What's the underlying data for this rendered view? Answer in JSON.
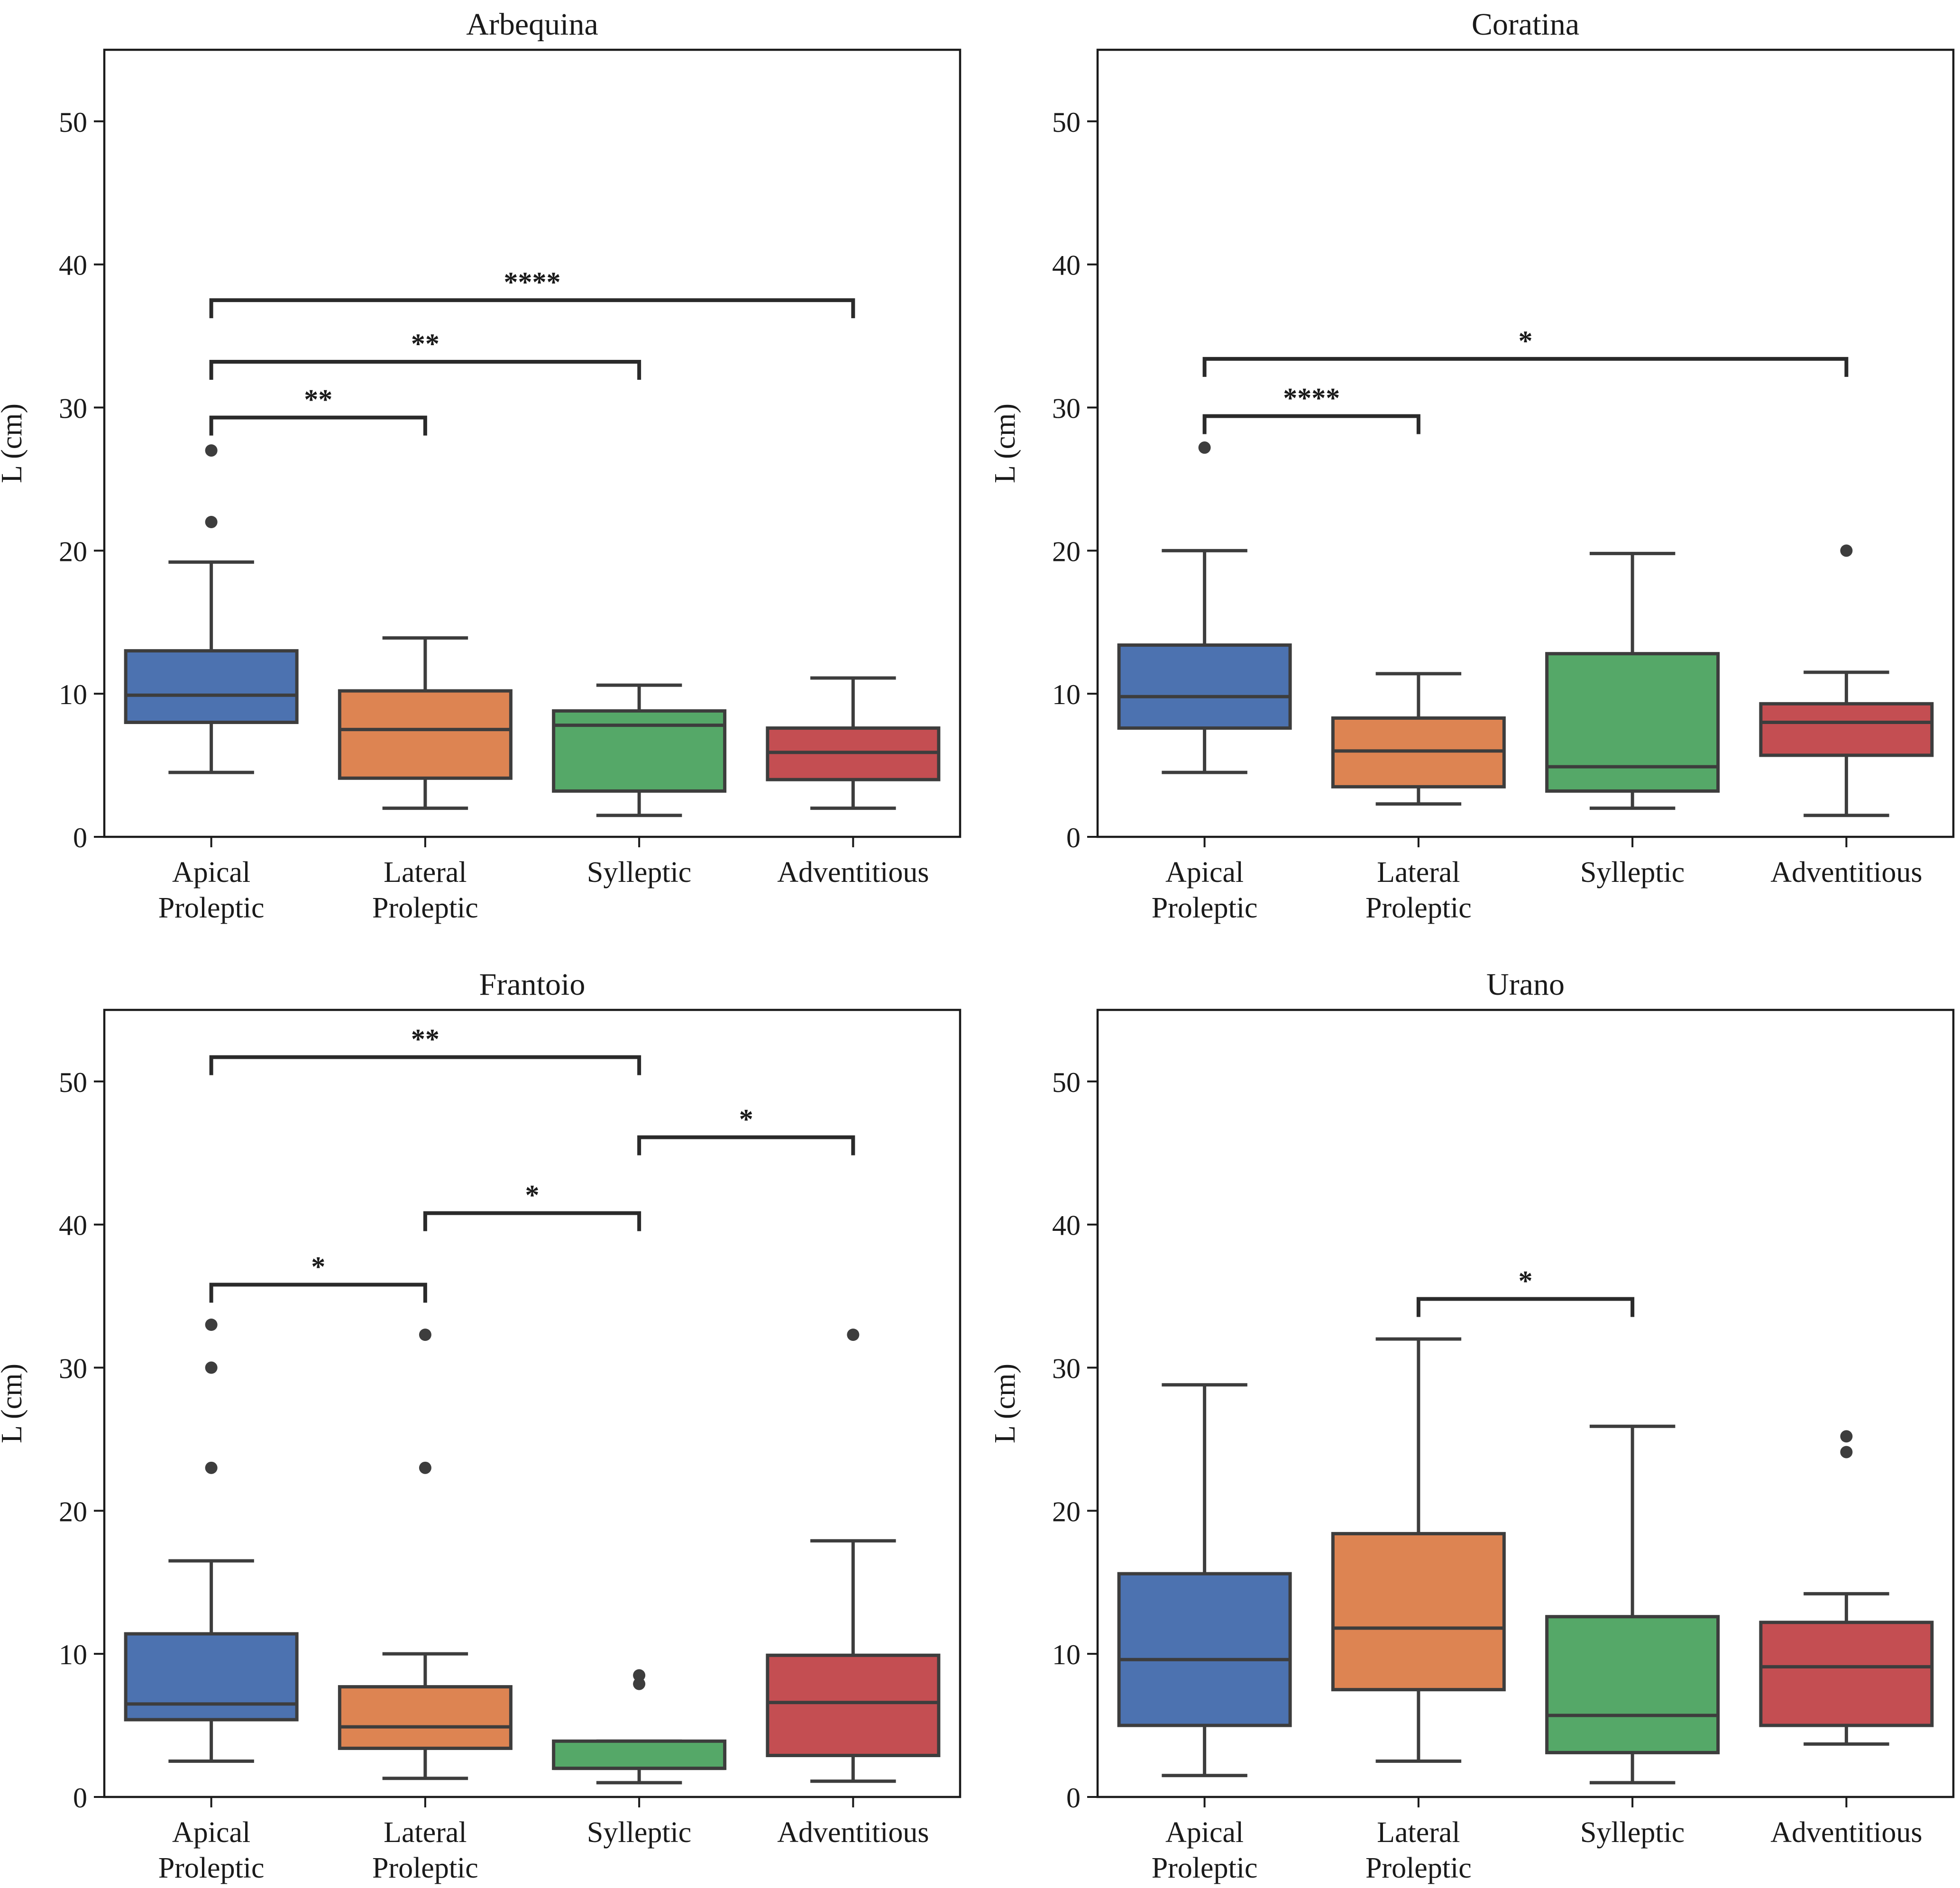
{
  "figure": {
    "ylabel": "L (cm)",
    "category_lines": [
      [
        "Apical",
        "Proleptic"
      ],
      [
        "Lateral",
        "Proleptic"
      ],
      [
        "Sylleptic"
      ],
      [
        "Adventitious"
      ]
    ]
  },
  "chart_data": [
    {
      "type": "box",
      "title": "Arbequina",
      "ylabel": "L (cm)",
      "ylim": [
        0,
        55
      ],
      "yticks": [
        0,
        10,
        20,
        30,
        40,
        50
      ],
      "categories": [
        "Apical Proleptic",
        "Lateral Proleptic",
        "Sylleptic",
        "Adventitious"
      ],
      "colors": [
        "#4c72b0",
        "#dd8452",
        "#55a868",
        "#c44e52"
      ],
      "boxes": [
        {
          "whislo": 4.5,
          "q1": 8.0,
          "med": 9.9,
          "q3": 13.0,
          "whishi": 19.2,
          "fliers": [
            22.0,
            27.0
          ]
        },
        {
          "whislo": 2.0,
          "q1": 4.1,
          "med": 7.5,
          "q3": 10.2,
          "whishi": 13.9,
          "fliers": []
        },
        {
          "whislo": 1.5,
          "q1": 3.2,
          "med": 7.8,
          "q3": 8.8,
          "whishi": 10.6,
          "fliers": []
        },
        {
          "whislo": 2.0,
          "q1": 4.0,
          "med": 5.9,
          "q3": 7.6,
          "whishi": 11.1,
          "fliers": []
        }
      ],
      "annotations": [
        {
          "from": 0,
          "to": 1,
          "y": 29.3,
          "label": "**"
        },
        {
          "from": 0,
          "to": 2,
          "y": 33.2,
          "label": "**"
        },
        {
          "from": 0,
          "to": 3,
          "y": 37.5,
          "label": "****"
        }
      ]
    },
    {
      "type": "box",
      "title": "Coratina",
      "ylabel": "L (cm)",
      "ylim": [
        0,
        55
      ],
      "yticks": [
        0,
        10,
        20,
        30,
        40,
        50
      ],
      "categories": [
        "Apical Proleptic",
        "Lateral Proleptic",
        "Sylleptic",
        "Adventitious"
      ],
      "colors": [
        "#4c72b0",
        "#dd8452",
        "#55a868",
        "#c44e52"
      ],
      "boxes": [
        {
          "whislo": 4.5,
          "q1": 7.6,
          "med": 9.8,
          "q3": 13.4,
          "whishi": 20.0,
          "fliers": [
            27.2
          ]
        },
        {
          "whislo": 2.3,
          "q1": 3.5,
          "med": 6.0,
          "q3": 8.3,
          "whishi": 11.4,
          "fliers": []
        },
        {
          "whislo": 2.0,
          "q1": 3.2,
          "med": 4.9,
          "q3": 12.8,
          "whishi": 19.8,
          "fliers": []
        },
        {
          "whislo": 1.5,
          "q1": 5.7,
          "med": 8.0,
          "q3": 9.3,
          "whishi": 11.5,
          "fliers": [
            20.0
          ]
        }
      ],
      "annotations": [
        {
          "from": 0,
          "to": 1,
          "y": 29.4,
          "label": "****"
        },
        {
          "from": 0,
          "to": 3,
          "y": 33.4,
          "label": "*"
        }
      ]
    },
    {
      "type": "box",
      "title": "Frantoio",
      "ylabel": "L (cm)",
      "ylim": [
        0,
        55
      ],
      "yticks": [
        0,
        10,
        20,
        30,
        40,
        50
      ],
      "categories": [
        "Apical Proleptic",
        "Lateral Proleptic",
        "Sylleptic",
        "Adventitious"
      ],
      "colors": [
        "#4c72b0",
        "#dd8452",
        "#55a868",
        "#c44e52"
      ],
      "boxes": [
        {
          "whislo": 2.5,
          "q1": 5.4,
          "med": 6.5,
          "q3": 11.4,
          "whishi": 16.5,
          "fliers": [
            23.0,
            30.0,
            33.0
          ]
        },
        {
          "whislo": 1.3,
          "q1": 3.4,
          "med": 4.9,
          "q3": 7.7,
          "whishi": 10.0,
          "fliers": [
            23.0,
            32.3
          ]
        },
        {
          "whislo": 1.0,
          "q1": 2.0,
          "med": 2.0,
          "q3": 3.9,
          "whishi": 3.9,
          "fliers": [
            7.9,
            8.5
          ]
        },
        {
          "whislo": 1.1,
          "q1": 2.9,
          "med": 6.6,
          "q3": 9.9,
          "whishi": 17.9,
          "fliers": [
            32.3
          ]
        }
      ],
      "annotations": [
        {
          "from": 0,
          "to": 1,
          "y": 35.8,
          "label": "*"
        },
        {
          "from": 1,
          "to": 2,
          "y": 40.8,
          "label": "*"
        },
        {
          "from": 2,
          "to": 3,
          "y": 46.1,
          "label": "*"
        },
        {
          "from": 0,
          "to": 2,
          "y": 51.7,
          "label": "**"
        }
      ]
    },
    {
      "type": "box",
      "title": "Urano",
      "ylabel": "L (cm)",
      "ylim": [
        0,
        55
      ],
      "yticks": [
        0,
        10,
        20,
        30,
        40,
        50
      ],
      "categories": [
        "Apical Proleptic",
        "Lateral Proleptic",
        "Sylleptic",
        "Adventitious"
      ],
      "colors": [
        "#4c72b0",
        "#dd8452",
        "#55a868",
        "#c44e52"
      ],
      "boxes": [
        {
          "whislo": 1.5,
          "q1": 5.0,
          "med": 9.6,
          "q3": 15.6,
          "whishi": 28.8,
          "fliers": []
        },
        {
          "whislo": 2.5,
          "q1": 7.5,
          "med": 11.8,
          "q3": 18.4,
          "whishi": 32.0,
          "fliers": []
        },
        {
          "whislo": 1.0,
          "q1": 3.1,
          "med": 5.7,
          "q3": 12.6,
          "whishi": 25.9,
          "fliers": []
        },
        {
          "whislo": 3.7,
          "q1": 5.0,
          "med": 9.1,
          "q3": 12.2,
          "whishi": 14.2,
          "fliers": [
            24.1,
            25.2
          ]
        }
      ],
      "annotations": [
        {
          "from": 1,
          "to": 2,
          "y": 34.8,
          "label": "*"
        }
      ]
    }
  ]
}
